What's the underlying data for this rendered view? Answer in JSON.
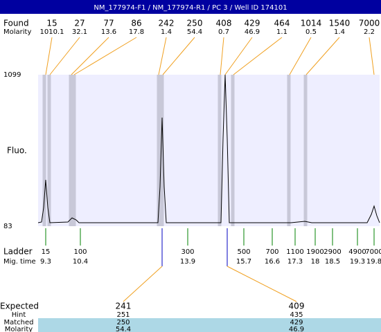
{
  "header": {
    "title": "NM_177974-F1 / NM_177974-R1 / PC 3 / Well ID 174101"
  },
  "found": {
    "label": "Found",
    "molarity_label": "Molarity",
    "peaks": [
      {
        "size": "15",
        "molarity": "1010.1"
      },
      {
        "size": "27",
        "molarity": "32.1"
      },
      {
        "size": "77",
        "molarity": "13.6"
      },
      {
        "size": "86",
        "molarity": "17.8"
      },
      {
        "size": "242",
        "molarity": "1.4"
      },
      {
        "size": "250",
        "molarity": "54.4"
      },
      {
        "size": "408",
        "molarity": "0.7"
      },
      {
        "size": "429",
        "molarity": "46.9"
      },
      {
        "size": "464",
        "molarity": "1.1"
      },
      {
        "size": "1014",
        "molarity": "0.5"
      },
      {
        "size": "1540",
        "molarity": "1.4"
      },
      {
        "size": "7000",
        "molarity": "2.2"
      }
    ]
  },
  "plot": {
    "y_label": "Fluo.",
    "y_max": "1099",
    "y_min": "83"
  },
  "ladder": {
    "label": "Ladder",
    "time_label": "Mig. time",
    "bands": [
      {
        "size": "15",
        "time": "9.3"
      },
      {
        "size": "100",
        "time": "10.4"
      },
      {
        "size": "300",
        "time": "13.9"
      },
      {
        "size": "500",
        "time": "15.7"
      },
      {
        "size": "700",
        "time": "16.6"
      },
      {
        "size": "1100",
        "time": "17.3"
      },
      {
        "size": "1900",
        "time": "18"
      },
      {
        "size": "2900",
        "time": "18.5"
      },
      {
        "size": "4900",
        "time": "19.3"
      },
      {
        "size": "7000",
        "time": "19.8"
      }
    ]
  },
  "expected": {
    "label": "Expected",
    "hint_label": "Hint",
    "matched_label": "Matched",
    "molarity_label": "Molarity",
    "rows": [
      {
        "expected": "241",
        "hint": "251",
        "matched": "250",
        "molarity": "54.4"
      },
      {
        "expected": "409",
        "hint": "435",
        "matched": "429",
        "molarity": "46.9"
      }
    ]
  }
}
